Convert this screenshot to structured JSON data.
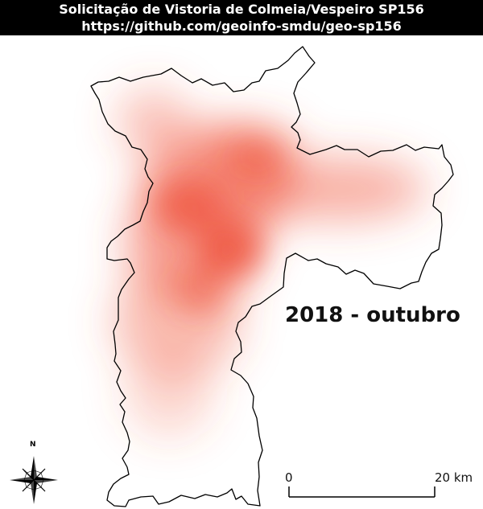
{
  "header": {
    "title": "Solicitação de Vistoria de Colmeia/Vespeiro SP156",
    "url": "https://github.com/geoinfo-smdu/geo-sp156"
  },
  "map": {
    "period_label": "2018 - outubro",
    "heatmap_color": "#f0533b",
    "boundary_color": "#000000",
    "north_label": "N",
    "scale": {
      "start_label": "0",
      "end_label": "20 km"
    }
  }
}
